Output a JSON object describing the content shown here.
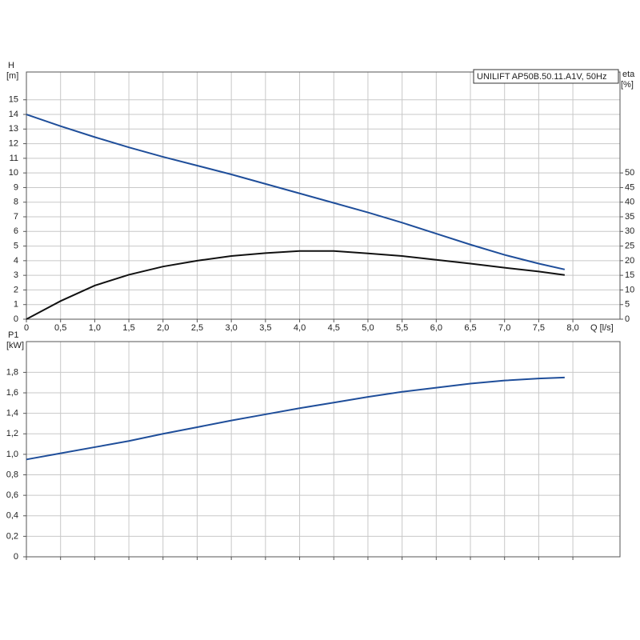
{
  "chart_data": [
    {
      "type": "line",
      "title": "UNILIFT AP50B.50.11.A1V, 50Hz",
      "ylabel": "H",
      "yunit": "[m]",
      "y2label": "eta",
      "y2unit": "[%]",
      "xlabel": "Q [l/s]",
      "grid": true,
      "show_xtick_labels": true,
      "xlim": [
        0,
        8.69
      ],
      "ylim": [
        0,
        16.9
      ],
      "y2lim": [
        0,
        84.5
      ],
      "xticks": [
        0,
        {
          "value": 0.5,
          "label": "0,5"
        },
        {
          "value": 1,
          "label": "1,0"
        },
        {
          "value": 1.5,
          "label": "1,5"
        },
        {
          "value": 2,
          "label": "2,0"
        },
        {
          "value": 2.5,
          "label": "2,5"
        },
        {
          "value": 3,
          "label": "3,0"
        },
        {
          "value": 3.5,
          "label": "3,5"
        },
        {
          "value": 4,
          "label": "4,0"
        },
        {
          "value": 4.5,
          "label": "4,5"
        },
        {
          "value": 5,
          "label": "5,0"
        },
        {
          "value": 5.5,
          "label": "5,5"
        },
        {
          "value": 6,
          "label": "6,0"
        },
        {
          "value": 6.5,
          "label": "6,5"
        },
        {
          "value": 7,
          "label": "7,0"
        },
        {
          "value": 7.5,
          "label": "7,5"
        },
        {
          "value": 8,
          "label": "8,0"
        }
      ],
      "yticks": [
        0,
        1,
        2,
        3,
        4,
        5,
        6,
        7,
        8,
        9,
        10,
        11,
        12,
        13,
        14,
        15
      ],
      "y2ticks": [
        0,
        5,
        10,
        15,
        20,
        25,
        30,
        35,
        40,
        45,
        50
      ],
      "x": [
        0,
        0.5,
        1,
        1.5,
        2,
        2.5,
        3,
        3.5,
        4,
        4.5,
        5,
        5.5,
        6,
        6.5,
        7,
        7.5,
        7.88
      ],
      "series": [
        {
          "color": "#1f4e9a",
          "axis": "y",
          "values": [
            14,
            13.2,
            12.45,
            11.75,
            11.1,
            10.5,
            9.9,
            9.25,
            8.6,
            7.95,
            7.3,
            6.6,
            5.85,
            5.1,
            4.4,
            3.8,
            3.4
          ]
        },
        {
          "color": "#111111",
          "axis": "y2",
          "values": [
            0,
            6.2,
            11.5,
            15.2,
            18,
            20,
            21.6,
            22.6,
            23.3,
            23.3,
            22.5,
            21.6,
            20.3,
            19,
            17.6,
            16.3,
            15.1
          ]
        }
      ]
    },
    {
      "type": "line",
      "ylabel": "P1",
      "yunit": "[kW]",
      "grid": true,
      "show_xtick_labels": false,
      "xlim": [
        0,
        8.69
      ],
      "ylim": [
        0,
        2.1
      ],
      "xticks": [
        0,
        0.5,
        1,
        1.5,
        2,
        2.5,
        3,
        3.5,
        4,
        4.5,
        5,
        5.5,
        6,
        6.5,
        7,
        7.5,
        8
      ],
      "yticks": [
        0,
        {
          "value": 0.2,
          "label": "0,2"
        },
        {
          "value": 0.4,
          "label": "0,4"
        },
        {
          "value": 0.6,
          "label": "0,6"
        },
        {
          "value": 0.8,
          "label": "0,8"
        },
        {
          "value": 1,
          "label": "1,0"
        },
        {
          "value": 1.2,
          "label": "1,2"
        },
        {
          "value": 1.4,
          "label": "1,4"
        },
        {
          "value": 1.6,
          "label": "1,6"
        },
        {
          "value": 1.8,
          "label": "1,8"
        }
      ],
      "x": [
        0,
        0.5,
        1,
        1.5,
        2,
        2.5,
        3,
        3.5,
        4,
        4.5,
        5,
        5.5,
        6,
        6.5,
        7,
        7.5,
        7.88
      ],
      "series": [
        {
          "color": "#1f4e9a",
          "axis": "y",
          "values": [
            0.95,
            1.01,
            1.07,
            1.13,
            1.2,
            1.265,
            1.33,
            1.39,
            1.45,
            1.505,
            1.56,
            1.61,
            1.65,
            1.69,
            1.72,
            1.74,
            1.75
          ]
        }
      ]
    }
  ]
}
